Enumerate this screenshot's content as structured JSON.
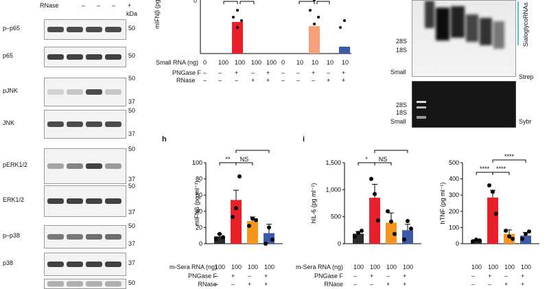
{
  "blot": {
    "rnase_label": "RNase",
    "rnase_signs": [
      "–",
      "–",
      "–",
      "+"
    ],
    "kda_label": "kDa",
    "rows": [
      {
        "label": "p–p65",
        "markers": [
          "50"
        ]
      },
      {
        "label": "p65",
        "markers": [
          "50"
        ]
      },
      {
        "label": "pJNK",
        "markers": [
          "50",
          "37"
        ]
      },
      {
        "label": "JNK",
        "markers": [
          "50",
          "37"
        ]
      },
      {
        "label": "pERK1/2",
        "markers": [
          "50",
          "37"
        ]
      },
      {
        "label": "ERK1/2",
        "markers": [
          "50",
          "37"
        ]
      },
      {
        "label": "p–p38",
        "markers": [
          "50",
          "37"
        ]
      },
      {
        "label": "p38",
        "markers": [
          "37"
        ]
      },
      {
        "label": "",
        "markers": [
          "50"
        ]
      }
    ]
  },
  "top_chart": {
    "ylabel": "mIFNβ (pg ml⁻¹)",
    "y_top_tick": "0",
    "row_labels": [
      "Small RNA (ng)",
      "PNGase F",
      "RNase"
    ],
    "doses": [
      "0",
      "100",
      "100",
      "100",
      "100",
      "0",
      "10",
      "10",
      "10",
      "10"
    ],
    "pngase": [
      "–",
      "–",
      "+",
      "–",
      "+",
      "–",
      "–",
      "+",
      "–",
      "+"
    ],
    "rnase": [
      "–",
      "–",
      "–",
      "+",
      "+",
      "–",
      "–",
      "–",
      "+",
      "+"
    ]
  },
  "gel": {
    "labels_top": [
      "28S",
      "18S",
      "Small"
    ],
    "labels_bottom": [
      "28S",
      "18S",
      "Small"
    ],
    "strep_label": "Strep",
    "sybr_label": "Sybr",
    "side_label": "SialoglycoRNAs"
  },
  "panels": {
    "h": "h",
    "i": "i"
  },
  "row_labels": {
    "rna": "m-Sera RNA (ng)",
    "png": "PNGase F",
    "rnase": "RNase"
  },
  "conditions": {
    "rna": [
      "100",
      "100",
      "100",
      "100"
    ],
    "png": [
      "–",
      "+",
      "–",
      "+"
    ],
    "rnase": [
      "–",
      "–",
      "+",
      "+"
    ]
  },
  "sig_h": [
    "**",
    "**",
    "NS"
  ],
  "sig_i": [
    "*",
    "*",
    "NS"
  ],
  "sig_tnf": [
    "****",
    "****",
    "****"
  ],
  "chart_data": [
    {
      "type": "bar",
      "ylabel": "mIFNβ (pg ml⁻¹)",
      "ylim": [
        0,
        100
      ],
      "yticks": [
        "0",
        "20",
        "40",
        "60",
        "80",
        "100"
      ],
      "values": [
        9,
        54,
        28,
        13
      ],
      "errors": [
        3,
        12,
        5,
        11
      ],
      "colors": [
        "#2b2b2b",
        "#e8202a",
        "#f7941d",
        "#3b5ba9"
      ],
      "points": [
        [
          6,
          12,
          8
        ],
        [
          33,
          44,
          83
        ],
        [
          22,
          31,
          29
        ],
        [
          0,
          20,
          5
        ]
      ]
    },
    {
      "type": "bar",
      "ylabel": "hIL-6 (pg ml⁻¹)",
      "ylim": [
        0,
        1500
      ],
      "yticks": [
        "0",
        "500",
        "1,000",
        "1,500"
      ],
      "values": [
        185,
        850,
        390,
        250
      ],
      "errors": [
        40,
        250,
        180,
        110
      ],
      "colors": [
        "#2b2b2b",
        "#e8202a",
        "#f7941d",
        "#3b5ba9"
      ],
      "points": [
        [
          130,
          200,
          240
        ],
        [
          1200,
          920,
          430
        ],
        [
          600,
          410,
          180
        ],
        [
          80,
          420,
          280
        ]
      ]
    },
    {
      "type": "bar",
      "ylabel": "hTNF (pg ml⁻¹)",
      "ylim": [
        0,
        500
      ],
      "yticks": [
        "0",
        "100",
        "200",
        "300",
        "400",
        "500"
      ],
      "values": [
        20,
        285,
        60,
        50
      ],
      "errors": [
        5,
        45,
        25,
        20
      ],
      "colors": [
        "#2b2b2b",
        "#e8202a",
        "#f7941d",
        "#3b5ba9"
      ],
      "points": [
        [
          15,
          25,
          20
        ],
        [
          360,
          320,
          185
        ],
        [
          80,
          45,
          30
        ],
        [
          30,
          60,
          75
        ]
      ]
    }
  ]
}
